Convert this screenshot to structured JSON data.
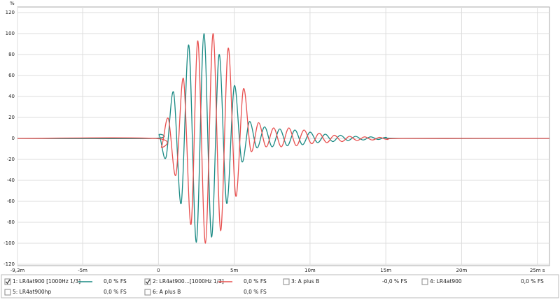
{
  "chart_data": {
    "type": "line",
    "y_label": "%",
    "xlim": [
      -9.3,
      25.8
    ],
    "ylim": [
      -120,
      120
    ],
    "xticks": [
      {
        "value": -9.3,
        "label": "-9,3m"
      },
      {
        "value": -5,
        "label": "-5m"
      },
      0,
      {
        "value": 5,
        "label": "5m"
      },
      {
        "value": 10,
        "label": "10m"
      },
      {
        "value": 15,
        "label": "15m"
      },
      {
        "value": 20,
        "label": "20m"
      },
      {
        "value": 25,
        "label": "25m s"
      }
    ],
    "yticks": [
      -120,
      -100,
      -80,
      -60,
      -40,
      -20,
      0,
      20,
      40,
      60,
      80,
      100,
      120
    ],
    "grid": true,
    "series": [
      {
        "name": "1: LR4at900 [1000Hz 1/3]",
        "color": "#1a8a84",
        "checked": true,
        "readout": "0,0 % FS",
        "x": [
          -9.3,
          -0.4,
          0.05,
          0.5,
          1.0,
          1.5,
          2.0,
          2.5,
          3.0,
          3.5,
          4.0,
          4.5,
          5.0,
          5.5,
          6.0,
          6.5,
          7.0,
          7.5,
          8.0,
          8.5,
          9.0,
          9.5,
          10.0,
          10.5,
          11.0,
          11.5,
          12.0,
          12.5,
          13.0,
          13.5,
          14.0,
          14.5,
          15.0,
          16.0,
          25.8
        ],
        "values": [
          0,
          0,
          3,
          -18,
          44,
          -62,
          89,
          -99,
          100,
          -94,
          80,
          -62,
          50,
          -22,
          16,
          -9,
          11,
          -8,
          9,
          -7,
          8,
          -6,
          6,
          -4,
          4,
          -3,
          3,
          -2,
          2,
          -1.5,
          1.5,
          -1,
          1,
          0,
          0
        ]
      },
      {
        "name": "2: LR4at900...[1000Hz 1/3]",
        "color": "#e8504f",
        "checked": true,
        "readout": "0,0 % FS",
        "x": [
          -9.3,
          -0.2,
          0.2,
          0.65,
          1.15,
          1.65,
          2.15,
          2.6,
          3.1,
          3.6,
          4.1,
          4.6,
          5.1,
          5.6,
          6.1,
          6.6,
          7.1,
          7.6,
          8.1,
          8.6,
          9.1,
          9.6,
          10.1,
          10.6,
          11.1,
          11.6,
          12.1,
          12.6,
          13.1,
          13.6,
          14.1,
          14.6,
          15.1,
          16.2,
          25.8
        ],
        "values": [
          0,
          0,
          -8,
          19,
          -35,
          57,
          -82,
          93,
          -100,
          100,
          -88,
          86,
          -55,
          47,
          -12,
          15,
          -8,
          10,
          -8,
          10,
          -7,
          8,
          -5,
          5,
          -4,
          3,
          -3,
          2,
          -2,
          1.5,
          -1.5,
          1,
          -1,
          0,
          0
        ]
      },
      {
        "name": "3: A plus B",
        "color": "#b030b8",
        "checked": false,
        "readout": "-0,0 % FS"
      },
      {
        "name": "4: LR4at900",
        "color": "#2a8a2a",
        "checked": false,
        "readout": "0,0 % FS"
      },
      {
        "name": "5: LR4at900hp",
        "color": "#999999",
        "checked": false,
        "readout": "0,0 % FS"
      },
      {
        "name": "6: A plus B",
        "color": "#1a8a84",
        "checked": false,
        "readout": "0,0 % FS"
      }
    ]
  }
}
